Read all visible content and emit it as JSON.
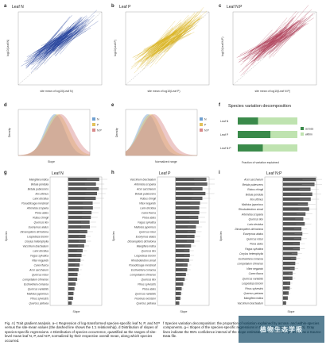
{
  "panels": {
    "a": {
      "letter": "a",
      "title": "Leaf N",
      "ylabel": "log10(Leaf N)",
      "xlabel": "site mean of log10(Leaf N)",
      "color": "#1f3d99"
    },
    "b": {
      "letter": "b",
      "title": "Leaf P",
      "ylabel": "log10(Leaf P)",
      "xlabel": "site mean of log10(Leaf P)",
      "color": "#d9b11e"
    },
    "c": {
      "letter": "c",
      "title": "Leaf N:P",
      "ylabel": "log10(Leaf N:P)",
      "xlabel": "site mean of log10(Leaf N:P)",
      "color": "#b0435b"
    },
    "d": {
      "letter": "d",
      "ylabel": "Density",
      "xlabel": "Slope",
      "legend": [
        "N",
        "P",
        "N:P"
      ]
    },
    "e": {
      "letter": "e",
      "ylabel": "Density",
      "xlabel": "Normalized range",
      "legend": [
        "N",
        "P",
        "N:P"
      ]
    },
    "f": {
      "letter": "f",
      "title": "Species variation decomposition",
      "xlabel": "Fraction of variation explained",
      "rows": [
        "Leaf N",
        "Leaf P",
        "Leaf N:P"
      ],
      "legend": [
        "across",
        "within"
      ],
      "across_frac": [
        0.34,
        0.55,
        0.42
      ]
    },
    "g": {
      "letter": "g",
      "title": "Leaf N",
      "ylabel": "Species",
      "xlabel": "Slope"
    },
    "h": {
      "letter": "h",
      "title": "Leaf P",
      "ylabel": "Species",
      "xlabel": "Slope"
    },
    "i": {
      "letter": "i",
      "title": "Leaf N:P",
      "ylabel": "Species",
      "xlabel": "Slope"
    }
  },
  "species_g": [
    "Mangifera indica",
    "Betula pendula",
    "Betula pubescens",
    "Ilex ultimus",
    "Larix decidua",
    "Pseudotsuga menziesii",
    "Artemisia scoparia",
    "Picea abies",
    "Rubus chingii",
    "Quercus ilex",
    "Euonymus alatus",
    "Dicranopteris dichotoma",
    "Lespedeza bicolor",
    "Corylus heterophylla",
    "Vaccinium bracteatum",
    "Larix decidua",
    "Fagus sylvatica",
    "Vitex negundo",
    "Carex flacca",
    "Acer saccharum",
    "Quercus robur",
    "Loropetalum chinense",
    "Eschweilera coriacea",
    "Quercus variabilis",
    "Mallotus japonicus",
    "Pinus sylvestris",
    "Quercus petraea"
  ],
  "species_h": [
    "Vaccinium bracteatum",
    "Artemisia scoparia",
    "Acer saccharum",
    "Betula pubescens",
    "Rubus chingii",
    "Vitex negundo",
    "Larix decidua",
    "Carex flacca",
    "Picea abies",
    "Fagus sylvatica",
    "Mallotus japonicus",
    "Quercus robur",
    "Euonymus alatus",
    "Dicranopteris dichotoma",
    "Mangifera indica",
    "Quercus ilex",
    "Lespedeza bicolor",
    "Rhododendron simsii",
    "Pseudotsuga menziesii",
    "Eschweilera coriacea",
    "Loropetalum chinense",
    "Quercus ilex",
    "Pinus sylvestris",
    "Picea abies",
    "Quercus variabilis",
    "Fraxinus excelsior",
    "Quercus petraea"
  ],
  "species_i": [
    "Acer saccharum",
    "Betula pubescens",
    "Rubus chingii",
    "Betula pendula",
    "Ilex ultimus",
    "Mallotus japonicus",
    "Rhododendron simsii",
    "Artemisia scoparia",
    "Quercus ilex",
    "Larix decidua",
    "Dicranopteris dichotoma",
    "Euonymus alatus",
    "Quercus robur",
    "Picea abies",
    "Fagus sylvatica",
    "Corylus heterophylla",
    "Eschweilera coriacea",
    "Loropetalum chinense",
    "Vitex negundo",
    "Carex flacca",
    "Quercus variabilis",
    "Lespedeza bicolor",
    "Pinus sylvestris",
    "Quercus petraea",
    "Mangifera indica",
    "Vaccinium bracteatum"
  ],
  "caption_left": "Fig. 4 | Trait gradient analysis. a–c Regression of log-transformed species-specific leaf N, P, and N:P versus the site-mean values (the dashed line shows the 1:1 relationship). d Distribution of slopes of species-specific regressions. e Distribution of species occurrence, quantified as the ranges of site-level mean leaf N, P, and N:P, normalized by their respective overall mean, along which species occurred.",
  "caption_right": "f Species variation decomposition: the proportion of variation explained by across- and within-species components. g–i Slopes of the species-specific regressions in the cited top species (N = 50). Gray lines indicate the 95% confidence interval of the slope estimate. Source data are provided as a Source Data file.",
  "watermark": "植物生态学报"
}
